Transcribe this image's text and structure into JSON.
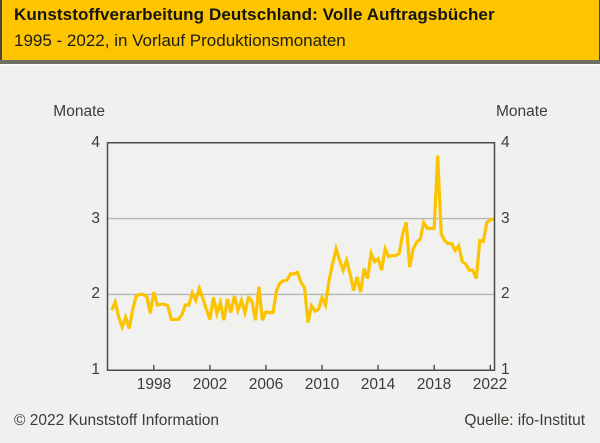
{
  "header": {
    "title": "Kunststoffverarbeitung Deutschland: Volle Auftragsbücher",
    "subtitle": "1995 - 2022, in Vorlauf Produktionsmonaten"
  },
  "footer": {
    "copyright": "© 2022 Kunststoff Information",
    "source": "Quelle: ifo-Institut"
  },
  "colors": {
    "banner_bg": "#fdc500",
    "line": "#fcc400",
    "page_bg": "#f0f0ee",
    "plot_bg": "#f1f1ef",
    "axis": "#4b4b49",
    "grid": "#b6b6b4",
    "text": "#3c3c3c",
    "divider": "#6e6e62"
  },
  "chart_data": {
    "type": "line",
    "title": "Kunststoffverarbeitung Deutschland: Volle Auftragsbücher",
    "subtitle": "1995 - 2022, in Vorlauf Produktionsmonaten",
    "ylabel_left": "Monate",
    "ylabel_right": "Monate",
    "xlabel": "",
    "xlim": [
      1994.7,
      2022.3
    ],
    "ylim": [
      1,
      4
    ],
    "yticks": [
      1,
      2,
      3,
      4
    ],
    "xticks": [
      1998,
      2002,
      2006,
      2010,
      2014,
      2018,
      2022
    ],
    "grid_y": [
      2,
      3
    ],
    "legend": "none",
    "x_start": 1995,
    "x_step": 0.25,
    "x_unit": "year (quarterly)",
    "series": [
      {
        "values": [
          1.79,
          1.9,
          1.7,
          1.57,
          1.7,
          1.55,
          1.8,
          1.98,
          2.0,
          2.0,
          1.97,
          1.75,
          2.03,
          1.86,
          1.87,
          1.87,
          1.85,
          1.67,
          1.67,
          1.67,
          1.73,
          1.86,
          1.86,
          2.02,
          1.92,
          2.08,
          1.95,
          1.8,
          1.67,
          1.96,
          1.75,
          1.89,
          1.66,
          1.94,
          1.76,
          1.98,
          1.79,
          1.92,
          1.76,
          1.96,
          1.91,
          1.66,
          2.1,
          1.66,
          1.77,
          1.76,
          1.76,
          2.05,
          2.15,
          2.18,
          2.19,
          2.27,
          2.27,
          2.29,
          2.16,
          2.09,
          1.63,
          1.85,
          1.78,
          1.8,
          1.96,
          1.86,
          2.18,
          2.4,
          2.6,
          2.45,
          2.32,
          2.45,
          2.27,
          2.05,
          2.23,
          2.03,
          2.34,
          2.21,
          2.54,
          2.43,
          2.47,
          2.32,
          2.6,
          2.5,
          2.51,
          2.51,
          2.54,
          2.8,
          2.95,
          2.36,
          2.6,
          2.69,
          2.73,
          2.95,
          2.87,
          2.87,
          2.87,
          3.83,
          2.8,
          2.71,
          2.67,
          2.67,
          2.58,
          2.64,
          2.43,
          2.4,
          2.32,
          2.32,
          2.21,
          2.71,
          2.7,
          2.95,
          2.98,
          3.0
        ]
      }
    ]
  }
}
